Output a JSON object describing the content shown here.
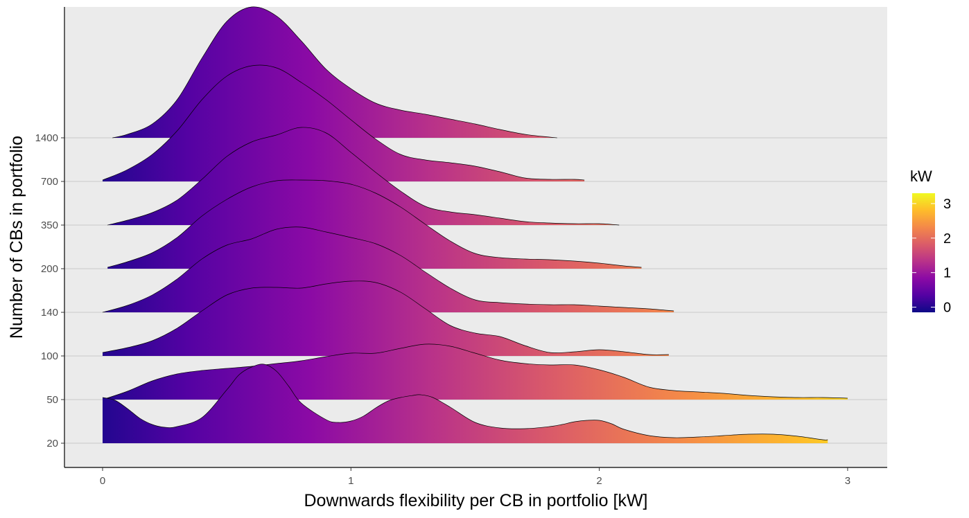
{
  "chart_data": {
    "type": "ridgeline",
    "xlabel": "Downwards flexibility per CB in portfolio [kW]",
    "ylabel": "Number of CBs in portfolio",
    "xlim": [
      -0.15,
      3.15
    ],
    "x_ticks": [
      0,
      1,
      2,
      3
    ],
    "x_tick_labels": [
      "0",
      "1",
      "2",
      "3"
    ],
    "categories": [
      "20",
      "50",
      "100",
      "140",
      "200",
      "350",
      "700",
      "1400"
    ],
    "grid": "horizontal",
    "panel_background": "#ebebeb",
    "fill_gradient": {
      "variable": "x",
      "palette": "plasma",
      "colors": [
        "#0d0887",
        "#5402a3",
        "#8b0aa5",
        "#b93289",
        "#db5c68",
        "#f48849",
        "#febc2a",
        "#f0f921"
      ],
      "domain": [
        -0.15,
        3.3
      ]
    },
    "legend": {
      "title": "kW",
      "placement": "right",
      "ticks": [
        0,
        1,
        2,
        3
      ],
      "tick_labels": [
        "0",
        "1",
        "2",
        "3"
      ]
    },
    "ridge_scale": 0.0138,
    "series": [
      {
        "name": "20",
        "x": [
          0.0,
          0.05,
          0.1,
          0.15,
          0.2,
          0.25,
          0.3,
          0.4,
          0.5,
          0.55,
          0.6,
          0.65,
          0.7,
          0.75,
          0.8,
          0.9,
          0.95,
          1.0,
          1.05,
          1.1,
          1.15,
          1.2,
          1.25,
          1.28,
          1.33,
          1.4,
          1.5,
          1.6,
          1.7,
          1.8,
          1.85,
          1.9,
          1.95,
          2.0,
          2.05,
          2.1,
          2.2,
          2.3,
          2.4,
          2.5,
          2.6,
          2.7,
          2.8,
          2.9,
          2.92
        ],
        "y": [
          66,
          62,
          50,
          36,
          27,
          23,
          24,
          37,
          77,
          99,
          110,
          114,
          104,
          82,
          58,
          34,
          30,
          32,
          39,
          51,
          61,
          66,
          69,
          70,
          66,
          52,
          30,
          22,
          21,
          24,
          27,
          31,
          33,
          33,
          28,
          20,
          11,
          8,
          9,
          11,
          13,
          13,
          10,
          5,
          5
        ]
      },
      {
        "name": "50",
        "x": [
          0.0,
          0.1,
          0.2,
          0.3,
          0.4,
          0.5,
          0.6,
          0.7,
          0.8,
          0.9,
          1.0,
          1.1,
          1.2,
          1.3,
          1.4,
          1.5,
          1.6,
          1.7,
          1.8,
          1.9,
          2.0,
          2.1,
          2.2,
          2.3,
          2.4,
          2.5,
          2.6,
          2.7,
          2.8,
          2.9,
          3.0
        ],
        "y": [
          0,
          12,
          27,
          37,
          42,
          45,
          48,
          52,
          56,
          62,
          67,
          67,
          74,
          80,
          77,
          67,
          57,
          52,
          50,
          50,
          43,
          32,
          18,
          13,
          11,
          9,
          6,
          4,
          3,
          3,
          2
        ]
      },
      {
        "name": "100",
        "x": [
          0.0,
          0.1,
          0.2,
          0.3,
          0.4,
          0.5,
          0.6,
          0.7,
          0.8,
          0.9,
          1.0,
          1.1,
          1.2,
          1.3,
          1.4,
          1.5,
          1.6,
          1.7,
          1.8,
          1.9,
          2.0,
          2.1,
          2.2,
          2.28
        ],
        "y": [
          5,
          12,
          22,
          40,
          65,
          88,
          98,
          99,
          98,
          104,
          108,
          106,
          92,
          68,
          44,
          33,
          28,
          15,
          5,
          6,
          9,
          6,
          2,
          2
        ]
      },
      {
        "name": "140",
        "x": [
          0.0,
          0.1,
          0.2,
          0.3,
          0.4,
          0.5,
          0.6,
          0.7,
          0.8,
          0.9,
          1.0,
          1.1,
          1.2,
          1.3,
          1.4,
          1.5,
          1.6,
          1.7,
          1.8,
          1.9,
          2.0,
          2.1,
          2.2,
          2.3
        ],
        "y": [
          0,
          10,
          25,
          48,
          77,
          97,
          106,
          120,
          123,
          116,
          108,
          99,
          82,
          58,
          35,
          18,
          14,
          12,
          11,
          11,
          9,
          7,
          5,
          2
        ]
      },
      {
        "name": "200",
        "x": [
          0.02,
          0.1,
          0.2,
          0.3,
          0.4,
          0.5,
          0.6,
          0.7,
          0.8,
          0.9,
          1.0,
          1.1,
          1.2,
          1.3,
          1.4,
          1.5,
          1.6,
          1.7,
          1.8,
          1.9,
          2.0,
          2.1,
          2.17
        ],
        "y": [
          2,
          10,
          23,
          45,
          76,
          100,
          118,
          127,
          128,
          127,
          122,
          109,
          89,
          64,
          40,
          22,
          16,
          14,
          13,
          11,
          8,
          4,
          2
        ]
      },
      {
        "name": "350",
        "x": [
          0.02,
          0.1,
          0.2,
          0.3,
          0.4,
          0.5,
          0.6,
          0.7,
          0.8,
          0.9,
          1.0,
          1.1,
          1.2,
          1.3,
          1.4,
          1.5,
          1.6,
          1.7,
          1.8,
          1.9,
          2.0,
          2.08
        ],
        "y": [
          0,
          7,
          18,
          36,
          66,
          99,
          120,
          130,
          141,
          133,
          105,
          76,
          49,
          27,
          19,
          15,
          10,
          5,
          3,
          2,
          2,
          0
        ]
      },
      {
        "name": "700",
        "x": [
          0.0,
          0.1,
          0.2,
          0.3,
          0.4,
          0.5,
          0.6,
          0.7,
          0.8,
          0.9,
          1.0,
          1.1,
          1.2,
          1.3,
          1.4,
          1.5,
          1.6,
          1.7,
          1.8,
          1.9,
          1.94
        ],
        "y": [
          2,
          17,
          39,
          73,
          118,
          152,
          167,
          164,
          143,
          118,
          89,
          61,
          39,
          31,
          27,
          22,
          14,
          5,
          3,
          3,
          2
        ]
      },
      {
        "name": "1400",
        "x": [
          0.04,
          0.1,
          0.2,
          0.3,
          0.4,
          0.5,
          0.6,
          0.7,
          0.8,
          0.9,
          1.0,
          1.1,
          1.2,
          1.3,
          1.4,
          1.5,
          1.6,
          1.7,
          1.8,
          1.83
        ],
        "y": [
          0,
          5,
          20,
          55,
          115,
          168,
          189,
          176,
          140,
          99,
          71,
          50,
          40,
          34,
          27,
          20,
          12,
          5,
          1,
          0
        ]
      }
    ]
  }
}
